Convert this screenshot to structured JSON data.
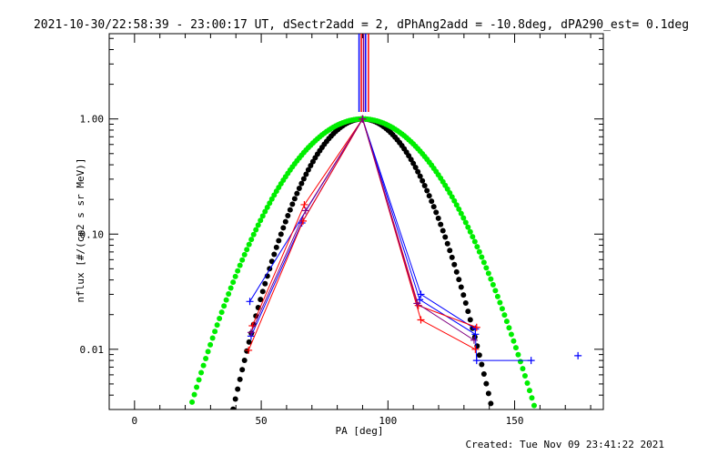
{
  "chart_data": {
    "type": "scatter",
    "title": "2021-10-30/22:58:39 - 23:00:17 UT, dSectr2add = 2, dPhAng2add = -10.8deg, dPA290_est=  0.1deg",
    "xlabel": "PA [deg]",
    "ylabel": "nflux [#/(cm2 s sr MeV)]",
    "footer": "Created: Tue Nov 09 23:41:22 2021",
    "xlim": [
      -10,
      185
    ],
    "ylim": [
      0.003,
      5.5
    ],
    "yscale": "log",
    "x_ticks": [
      0,
      50,
      100,
      150
    ],
    "x_tick_labels": [
      "0",
      "50",
      "100",
      "150"
    ],
    "y_ticks": [
      0.01,
      0.1,
      1.0
    ],
    "y_tick_labels": [
      "0.01",
      "0.10",
      "1.00"
    ],
    "grid": false,
    "colors": {
      "blue": "#0000ff",
      "red": "#ff0000",
      "purple": "#800080",
      "black": "#000000",
      "green": "#00ee00"
    },
    "vertical_markers": [
      {
        "x": 88.6,
        "color": "#0000ff"
      },
      {
        "x": 89.5,
        "color": "#ff0000"
      },
      {
        "x": 90.4,
        "color": "#800080"
      },
      {
        "x": 91.2,
        "color": "#0000ff"
      },
      {
        "x": 92.3,
        "color": "#ff0000"
      }
    ],
    "series": [
      {
        "color": "#0000ff",
        "marker": "plus",
        "points": [
          [
            45.5,
            0.026
          ],
          [
            90,
            1.0
          ],
          [
            113,
            0.03
          ],
          [
            134.5,
            0.015
          ]
        ]
      },
      {
        "color": "#0000ff",
        "marker": "plus",
        "points": [
          [
            46,
            0.013
          ],
          [
            66,
            0.125
          ],
          [
            90,
            1.0
          ],
          [
            112.5,
            0.027
          ],
          [
            134.5,
            0.0135
          ],
          [
            135,
            0.008
          ],
          [
            156.5,
            0.008
          ]
        ]
      },
      {
        "color": "#0000ff",
        "marker": "plus",
        "points": [
          [
            175,
            0.0088
          ]
        ]
      },
      {
        "color": "#ff0000",
        "marker": "plus",
        "points": [
          [
            46.5,
            0.016
          ],
          [
            67,
            0.18
          ],
          [
            90,
            1.0
          ],
          [
            112,
            0.024
          ],
          [
            135,
            0.0155
          ]
        ]
      },
      {
        "color": "#ff0000",
        "marker": "plus",
        "points": [
          [
            45,
            0.0098
          ],
          [
            66.5,
            0.13
          ],
          [
            90,
            1.0
          ],
          [
            113,
            0.018
          ],
          [
            134.5,
            0.01
          ]
        ]
      },
      {
        "color": "#800080",
        "marker": "plus",
        "points": [
          [
            46,
            0.014
          ],
          [
            67.5,
            0.16
          ],
          [
            90,
            1.0
          ],
          [
            111.5,
            0.025
          ],
          [
            134,
            0.012
          ]
        ]
      }
    ],
    "fit_curves": [
      {
        "color": "#000000",
        "center": 90,
        "sigma": 15
      },
      {
        "color": "#00ee00",
        "center": 90,
        "sigma": 20
      }
    ]
  }
}
